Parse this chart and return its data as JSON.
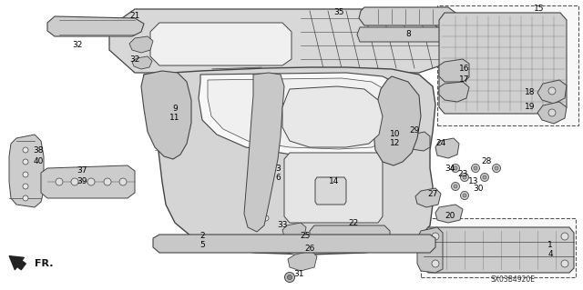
{
  "background_color": "#ffffff",
  "diagram_code": "SX03B4920E",
  "line_color": "#444444",
  "label_color": "#000000",
  "label_fontsize": 6.5,
  "fig_width": 6.4,
  "fig_height": 3.19,
  "dpi": 100
}
